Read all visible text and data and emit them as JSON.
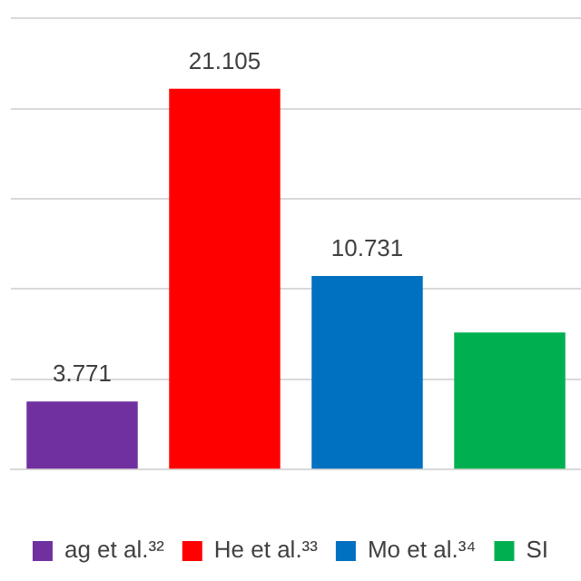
{
  "chart_data": {
    "type": "bar",
    "categories": [
      null,
      null,
      null,
      null
    ],
    "series": [
      {
        "name": "ag et al.³²",
        "color": "#7030a0",
        "values": [
          3.771,
          null,
          null,
          null
        ],
        "value_labels": [
          "3.771",
          null,
          null,
          null
        ]
      },
      {
        "name": "He et al.³³",
        "color": "#ff0000",
        "values": [
          null,
          21.105,
          null,
          null
        ],
        "value_labels": [
          null,
          "21.105",
          null,
          null
        ]
      },
      {
        "name": "Mo et al.³⁴",
        "color": "#0070c0",
        "values": [
          null,
          null,
          10.731,
          null
        ],
        "value_labels": [
          null,
          null,
          "10.731",
          null
        ]
      },
      {
        "name": "SI",
        "color": "#00b050",
        "values": [
          null,
          null,
          null,
          7.6
        ]
      }
    ],
    "ylim": [
      0,
      25
    ],
    "yticks": [
      {
        "value": 0,
        "label": null
      },
      {
        "value": 5,
        "label": null
      },
      {
        "value": 10,
        "label": null
      },
      {
        "value": 15,
        "label": null
      },
      {
        "value": 20,
        "label": null
      },
      {
        "value": 25,
        "label": null
      }
    ],
    "grid": "y",
    "stacked": true,
    "legend": "bottom"
  }
}
